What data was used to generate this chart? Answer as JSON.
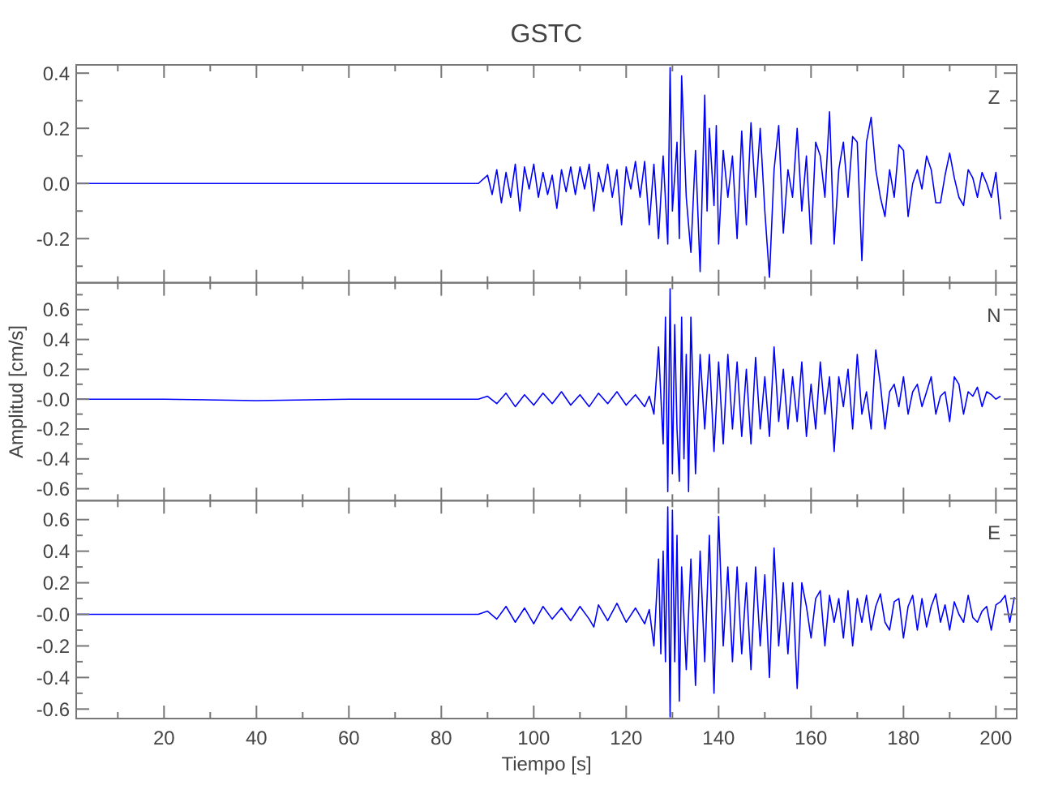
{
  "chart_data": [
    {
      "type": "line",
      "title": "GSTC",
      "annotations": [
        "Z"
      ],
      "tick_labels": "y",
      "xlim": [
        1,
        204.5
      ],
      "ylim": [
        -0.36,
        0.43
      ],
      "xticks": [
        {
          "value": 10,
          "label": null
        },
        20,
        {
          "value": 30,
          "label": null
        },
        40,
        {
          "value": 50,
          "label": null
        },
        60,
        {
          "value": 70,
          "label": null
        },
        80,
        {
          "value": 90,
          "label": null
        },
        100,
        {
          "value": 110,
          "label": null
        },
        120,
        {
          "value": 130,
          "label": null
        },
        140,
        {
          "value": 150,
          "label": null
        },
        160,
        {
          "value": 170,
          "label": null
        },
        180,
        {
          "value": 190,
          "label": null
        },
        200
      ],
      "yticks": [
        {
          "value": -0.3,
          "label": null
        },
        -0.2,
        {
          "value": -0.1,
          "label": null
        },
        {
          "value": 0,
          "label": "0.0"
        },
        {
          "value": 0.1,
          "label": null
        },
        0.2,
        {
          "value": 0.3,
          "label": null
        },
        0.4
      ],
      "series": [
        {
          "color": "#0000ff",
          "x": [
            1,
            20,
            40,
            60,
            80,
            88,
            90,
            91,
            92,
            93,
            94,
            95,
            96,
            97,
            98,
            99,
            100,
            101,
            102,
            103,
            104,
            105,
            106,
            107,
            108,
            109,
            110,
            111,
            112,
            113,
            114,
            115,
            116,
            117,
            118,
            119,
            120,
            121,
            122,
            123,
            124,
            125,
            126,
            127,
            128,
            129,
            129.5,
            130,
            131,
            131.5,
            132,
            133,
            134,
            135,
            136,
            137,
            137.5,
            138,
            139,
            139.5,
            140,
            141,
            142,
            143,
            144,
            145,
            146,
            147,
            148,
            149,
            150,
            151,
            152,
            153,
            154,
            155,
            156,
            157,
            158,
            159,
            160,
            161,
            162,
            163,
            164,
            165,
            166,
            167,
            168,
            169,
            170,
            171,
            172,
            173,
            174,
            175,
            176,
            177,
            178,
            179,
            180,
            181,
            182,
            183,
            184,
            185,
            186,
            187,
            188,
            189,
            190,
            191,
            192,
            193,
            194,
            195,
            196,
            197,
            198,
            199,
            200,
            201
          ],
          "values": [
            0,
            0,
            0,
            0,
            0,
            0,
            0.03,
            -0.04,
            0.05,
            -0.07,
            0.04,
            -0.05,
            0.07,
            -0.1,
            0.06,
            -0.02,
            0.07,
            -0.05,
            0.04,
            -0.04,
            0.03,
            -0.09,
            0.05,
            -0.03,
            0.06,
            -0.04,
            0.06,
            -0.02,
            0.07,
            -0.1,
            0.04,
            -0.03,
            0.07,
            -0.05,
            0.05,
            -0.15,
            0.06,
            -0.02,
            0.08,
            -0.05,
            0.08,
            -0.15,
            0.07,
            -0.2,
            0.1,
            -0.22,
            0.42,
            -0.1,
            0.15,
            -0.2,
            0.39,
            -0.05,
            -0.25,
            0.12,
            -0.32,
            0.32,
            -0.1,
            0.2,
            -0.08,
            0.21,
            -0.22,
            0.12,
            -0.05,
            0.1,
            -0.2,
            0.19,
            -0.15,
            0.22,
            -0.05,
            0.2,
            -0.1,
            -0.34,
            0.05,
            0.21,
            -0.18,
            0.05,
            -0.05,
            0.2,
            -0.1,
            0.1,
            -0.22,
            0.15,
            0.1,
            -0.05,
            0.26,
            -0.22,
            0.05,
            0.15,
            -0.05,
            0.17,
            0.15,
            -0.28,
            0.15,
            0.24,
            0.05,
            -0.05,
            -0.12,
            0.05,
            -0.05,
            0.14,
            0.12,
            -0.12,
            0,
            0.05,
            -0.02,
            0.1,
            0.05,
            -0.07,
            -0.07,
            0.03,
            0.11,
            0.02,
            -0.05,
            -0.08,
            0.05,
            0.02,
            -0.05,
            0.04,
            0,
            -0.05,
            0.04,
            -0.13
          ]
        }
      ]
    },
    {
      "type": "line",
      "ylabel": "Amplitud [cm/s]",
      "annotations": [
        "N"
      ],
      "tick_labels": "y",
      "xlim": [
        1,
        204.5
      ],
      "ylim": [
        -0.68,
        0.78
      ],
      "xticks": [
        {
          "value": 10,
          "label": null
        },
        20,
        {
          "value": 30,
          "label": null
        },
        40,
        {
          "value": 50,
          "label": null
        },
        60,
        {
          "value": 70,
          "label": null
        },
        80,
        {
          "value": 90,
          "label": null
        },
        100,
        {
          "value": 110,
          "label": null
        },
        120,
        {
          "value": 130,
          "label": null
        },
        140,
        {
          "value": 150,
          "label": null
        },
        160,
        {
          "value": 170,
          "label": null
        },
        180,
        {
          "value": 190,
          "label": null
        },
        200
      ],
      "yticks": [
        -0.6,
        {
          "value": -0.5,
          "label": null
        },
        -0.4,
        {
          "value": -0.3,
          "label": null
        },
        -0.2,
        {
          "value": -0.1,
          "label": null
        },
        {
          "value": 0,
          "label": "-0.0"
        },
        {
          "value": 0.1,
          "label": null
        },
        0.2,
        {
          "value": 0.3,
          "label": null
        },
        0.4,
        {
          "value": 0.5,
          "label": null
        },
        0.6,
        {
          "value": 0.7,
          "label": null
        }
      ],
      "series": [
        {
          "color": "#0000ff",
          "x": [
            1,
            20,
            40,
            60,
            80,
            88,
            90,
            92,
            94,
            96,
            98,
            100,
            102,
            104,
            106,
            108,
            110,
            112,
            114,
            116,
            118,
            120,
            122,
            124,
            125,
            126,
            127,
            128,
            128.5,
            129,
            129.5,
            130,
            130.5,
            131,
            131.5,
            132,
            132.5,
            133,
            133.5,
            134,
            135,
            136,
            137,
            138,
            139,
            140,
            141,
            142,
            143,
            144,
            145,
            146,
            147,
            148,
            149,
            150,
            151,
            152,
            153,
            154,
            155,
            156,
            157,
            158,
            159,
            160,
            161,
            162,
            163,
            164,
            165,
            166,
            167,
            168,
            169,
            170,
            171,
            172,
            173,
            174,
            175,
            176,
            177,
            178,
            179,
            180,
            181,
            182,
            183,
            184,
            185,
            186,
            187,
            188,
            189,
            190,
            191,
            192,
            193,
            194,
            195,
            196,
            197,
            198,
            199,
            200,
            201
          ],
          "values": [
            0,
            0,
            -0.01,
            0,
            0,
            0,
            0.02,
            -0.03,
            0.04,
            -0.05,
            0.03,
            -0.04,
            0.04,
            -0.03,
            0.05,
            -0.04,
            0.03,
            -0.05,
            0.04,
            -0.03,
            0.05,
            -0.04,
            0.03,
            -0.05,
            0.02,
            -0.1,
            0.35,
            -0.3,
            0.55,
            -0.62,
            0.74,
            -0.5,
            0.5,
            -0.2,
            -0.55,
            0.55,
            -0.4,
            0.3,
            -0.62,
            0.55,
            -0.5,
            0.3,
            -0.2,
            0.3,
            -0.35,
            0.25,
            -0.3,
            0.3,
            -0.2,
            0.25,
            -0.25,
            0.2,
            -0.3,
            0.28,
            -0.2,
            0.15,
            -0.25,
            0.35,
            -0.15,
            0.2,
            -0.2,
            0.15,
            -0.15,
            0.25,
            -0.25,
            0.1,
            -0.2,
            0.25,
            -0.1,
            0.15,
            -0.35,
            0.15,
            -0.05,
            0.2,
            -0.2,
            0.3,
            -0.1,
            0.05,
            -0.2,
            0.33,
            0.1,
            -0.2,
            0.05,
            0.1,
            -0.05,
            0.15,
            -0.1,
            0.05,
            0.1,
            -0.05,
            0.05,
            0.15,
            -0.1,
            0.02,
            0.05,
            -0.15,
            0.15,
            0.1,
            -0.1,
            0.05,
            0.02,
            0.08,
            -0.05,
            0.05,
            0.03,
            0.0,
            0.02
          ]
        }
      ]
    },
    {
      "type": "line",
      "xlabel": "Tiempo [s]",
      "annotations": [
        "E"
      ],
      "xlim": [
        1,
        204.5
      ],
      "ylim": [
        -0.66,
        0.72
      ],
      "xticks": [
        {
          "value": 10,
          "label": null
        },
        20,
        {
          "value": 30,
          "label": null
        },
        40,
        {
          "value": 50,
          "label": null
        },
        60,
        {
          "value": 70,
          "label": null
        },
        80,
        {
          "value": 90,
          "label": null
        },
        100,
        {
          "value": 110,
          "label": null
        },
        120,
        {
          "value": 130,
          "label": null
        },
        140,
        {
          "value": 150,
          "label": null
        },
        160,
        {
          "value": 170,
          "label": null
        },
        180,
        {
          "value": 190,
          "label": null
        },
        200
      ],
      "yticks": [
        -0.6,
        {
          "value": -0.5,
          "label": null
        },
        -0.4,
        {
          "value": -0.3,
          "label": null
        },
        -0.2,
        {
          "value": -0.1,
          "label": null
        },
        {
          "value": 0,
          "label": "-0.0"
        },
        {
          "value": 0.1,
          "label": null
        },
        0.2,
        {
          "value": 0.3,
          "label": null
        },
        0.4,
        {
          "value": 0.5,
          "label": null
        },
        0.6
      ],
      "series": [
        {
          "color": "#0000ff",
          "x": [
            1,
            20,
            40,
            60,
            80,
            88,
            90,
            92,
            94,
            96,
            98,
            100,
            102,
            104,
            106,
            108,
            110,
            112,
            113,
            114,
            116,
            118,
            120,
            122,
            124,
            125,
            126,
            127,
            127.5,
            128,
            128.5,
            129,
            129.5,
            130,
            130.5,
            131,
            131.5,
            132,
            133,
            134,
            135,
            136,
            137,
            138,
            139,
            140,
            141,
            142,
            143,
            144,
            145,
            146,
            147,
            148,
            149,
            150,
            151,
            152,
            153,
            154,
            155,
            156,
            157,
            158,
            159,
            160,
            161,
            162,
            163,
            164,
            165,
            166,
            167,
            168,
            169,
            170,
            171,
            172,
            173,
            174,
            175,
            176,
            177,
            178,
            179,
            180,
            181,
            182,
            183,
            184,
            185,
            186,
            187,
            188,
            189,
            190,
            191,
            192,
            193,
            194,
            195,
            196,
            197,
            198,
            199,
            200,
            201,
            202,
            203,
            204
          ],
          "values": [
            0,
            0,
            0,
            0,
            0,
            0,
            0.02,
            -0.03,
            0.05,
            -0.05,
            0.04,
            -0.06,
            0.05,
            -0.03,
            0.04,
            -0.04,
            0.05,
            -0.03,
            -0.08,
            0.06,
            -0.04,
            0.07,
            -0.05,
            0.04,
            -0.06,
            0.03,
            -0.2,
            0.35,
            -0.25,
            0.4,
            -0.3,
            0.68,
            -0.65,
            0.66,
            -0.3,
            0.5,
            -0.55,
            0.3,
            -0.35,
            0.35,
            -0.45,
            0.4,
            -0.3,
            0.5,
            -0.5,
            0.62,
            -0.2,
            0.3,
            -0.3,
            0.3,
            -0.25,
            0.2,
            -0.35,
            0.3,
            -0.2,
            0.25,
            -0.4,
            0.42,
            -0.2,
            0.2,
            -0.25,
            0.2,
            -0.47,
            0.2,
            0.05,
            -0.15,
            0.1,
            0.15,
            -0.2,
            0.12,
            -0.05,
            0.1,
            -0.15,
            0.15,
            -0.2,
            0.1,
            -0.05,
            0.12,
            -0.1,
            0.05,
            0.13,
            -0.05,
            -0.1,
            0.08,
            0.1,
            -0.15,
            0.05,
            0.12,
            -0.1,
            0.1,
            -0.08,
            0.05,
            0.13,
            -0.05,
            0.06,
            -0.1,
            0.08,
            0.0,
            -0.05,
            0.12,
            -0.02,
            -0.05,
            0.02,
            0.05,
            -0.1,
            0.06,
            0.08,
            0.12,
            -0.05,
            0.11
          ]
        }
      ]
    }
  ]
}
